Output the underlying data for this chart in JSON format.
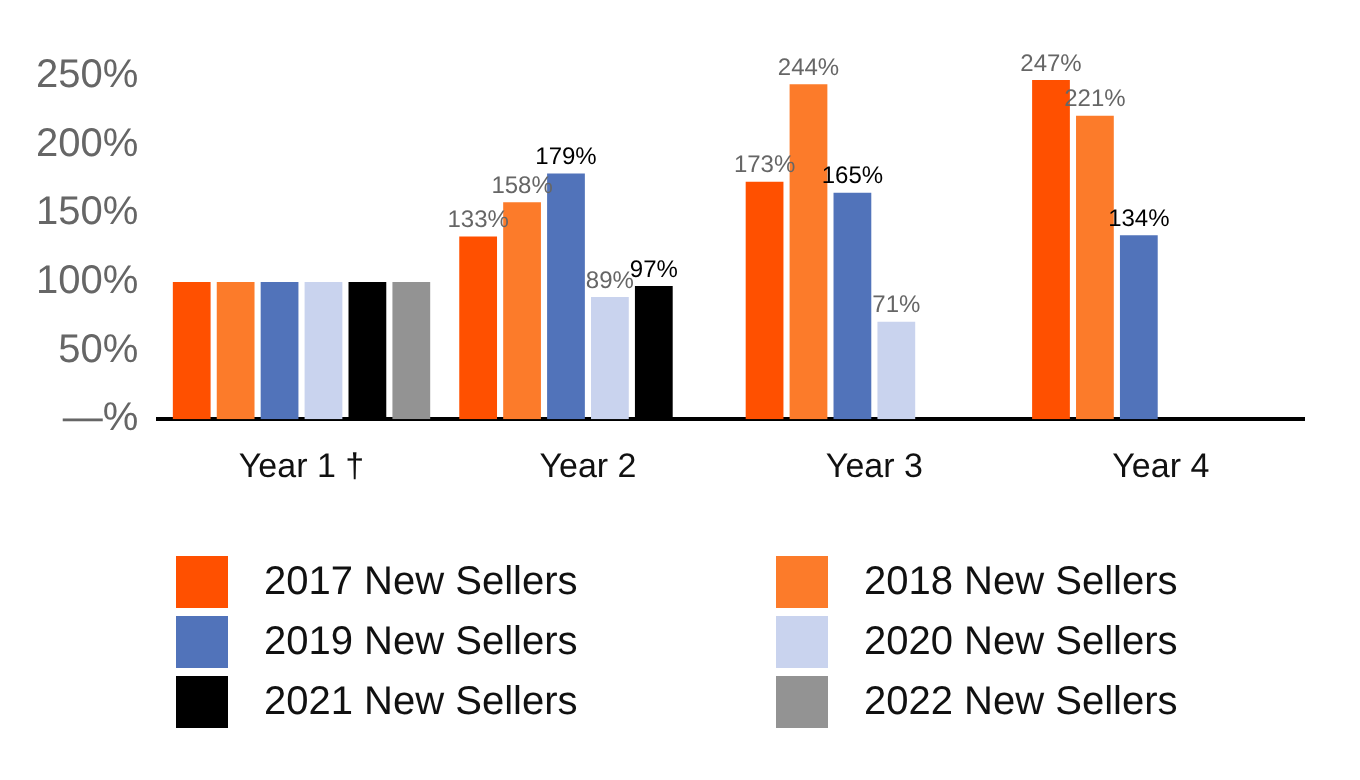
{
  "chart_data": {
    "type": "bar",
    "categories": [
      "Year 1 †",
      "Year 2",
      "Year 3",
      "Year 4"
    ],
    "series": [
      {
        "name": "2017 New Sellers",
        "color": "#ff5000",
        "values": [
          100,
          133,
          173,
          247
        ],
        "value_labels": [
          null,
          "133%",
          "173%",
          "247%"
        ]
      },
      {
        "name": "2018 New Sellers",
        "color": "#fc7b2a",
        "values": [
          100,
          158,
          244,
          221
        ],
        "value_labels": [
          null,
          "158%",
          "244%",
          "221%"
        ]
      },
      {
        "name": "2019 New Sellers",
        "color": "#5173ba",
        "values": [
          100,
          179,
          165,
          134
        ],
        "value_labels": [
          null,
          "179%",
          "165%",
          "134%"
        ]
      },
      {
        "name": "2020 New Sellers",
        "color": "#c9d3ee",
        "values": [
          100,
          89,
          71,
          null
        ],
        "value_labels": [
          null,
          "89%",
          "71%",
          null
        ]
      },
      {
        "name": "2021 New Sellers",
        "color": "#000000",
        "values": [
          100,
          97,
          null,
          null
        ],
        "value_labels": [
          null,
          "97%",
          null,
          null
        ]
      },
      {
        "name": "2022 New Sellers",
        "color": "#939393",
        "values": [
          100,
          null,
          null,
          null
        ],
        "value_labels": [
          null,
          null,
          null,
          null
        ]
      }
    ],
    "ylim": [
      0,
      250
    ],
    "yticks": [
      {
        "value": 0,
        "label": "—%"
      },
      {
        "value": 50,
        "label": "50%"
      },
      {
        "value": 100,
        "label": "100%"
      },
      {
        "value": 150,
        "label": "150%"
      },
      {
        "value": 200,
        "label": "200%"
      },
      {
        "value": 250,
        "label": "250%"
      }
    ],
    "grid": false,
    "legend": "bottom"
  }
}
